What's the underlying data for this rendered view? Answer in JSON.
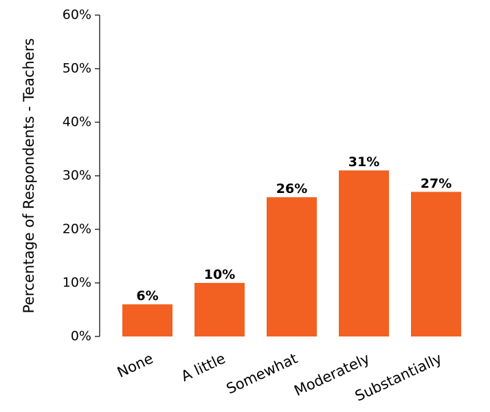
{
  "chart_data": {
    "type": "bar",
    "title": "",
    "xlabel": "",
    "ylabel": "Percentage of Respondents - Teachers",
    "categories": [
      "None",
      "A little",
      "Somewhat",
      "Moderately",
      "Substantially"
    ],
    "values": [
      6,
      10,
      26,
      31,
      27
    ],
    "value_labels": [
      "6%",
      "10%",
      "26%",
      "31%",
      "27%"
    ],
    "ylim": [
      0,
      60
    ],
    "yticks": [
      0,
      10,
      20,
      30,
      40,
      50,
      60
    ],
    "ytick_labels": [
      "0%",
      "10%",
      "20%",
      "30%",
      "40%",
      "50%",
      "60%"
    ],
    "grid": false,
    "legend": "none",
    "colors": {
      "bar": "#F26122",
      "axis": "#000000",
      "text": "#000000"
    }
  }
}
